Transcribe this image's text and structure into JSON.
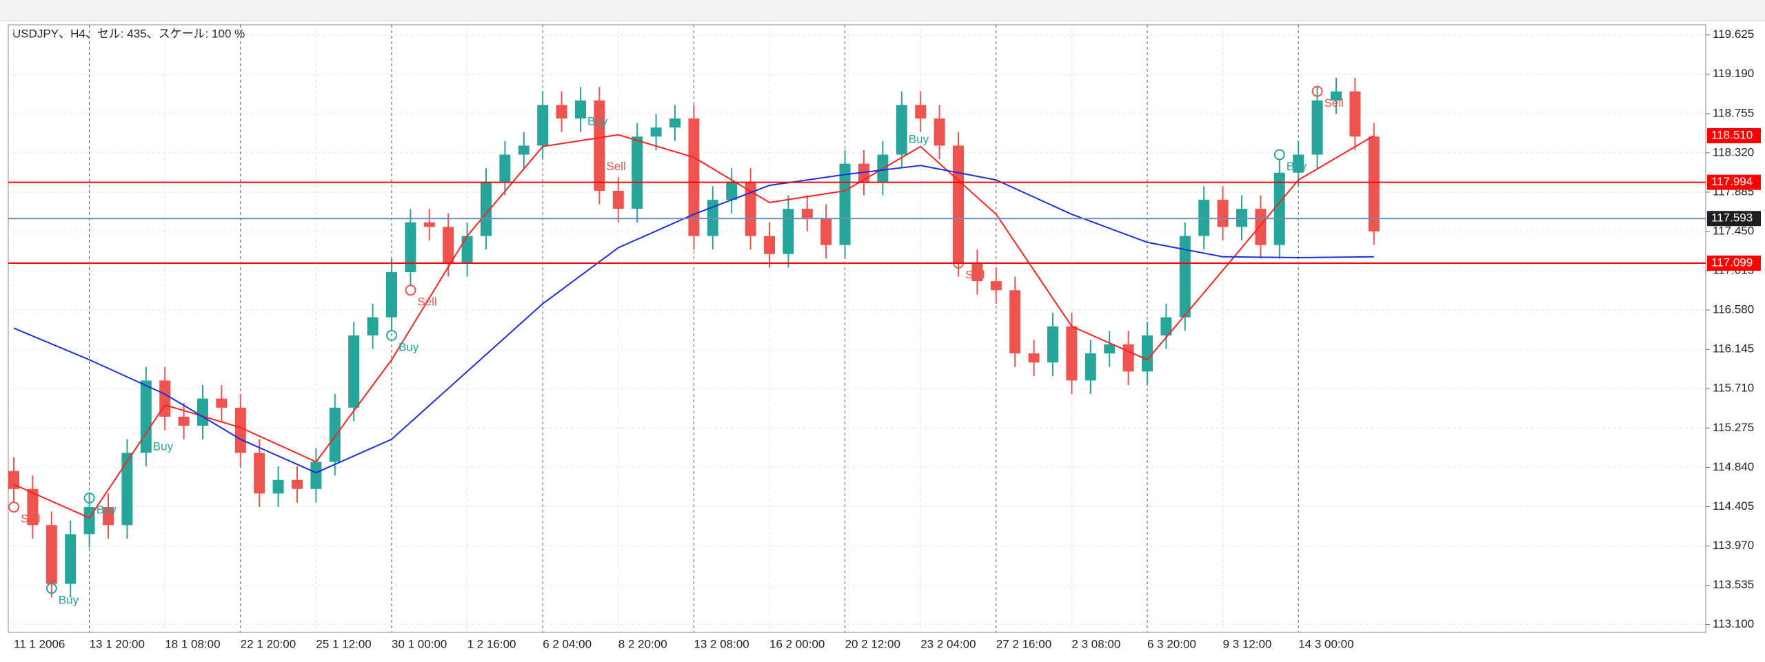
{
  "chart_data": {
    "type": "candlestick",
    "title": "USDJPY、H4、セル: 435、スケール: 100 %",
    "x_labels": [
      "11 1 2006",
      "13 1 20:00",
      "18 1 08:00",
      "22 1 20:00",
      "25 1 12:00",
      "30 1 00:00",
      "1 2 16:00",
      "6 2 04:00",
      "8 2 20:00",
      "13 2 08:00",
      "16 2 00:00",
      "20 2 12:00",
      "23 2 04:00",
      "27 2 16:00",
      "2 3 08:00",
      "6 3 20:00",
      "9 3 12:00",
      "14 3 00:00"
    ],
    "ylim": [
      113.013,
      119.737
    ],
    "yticks": [
      {
        "value": 113.1,
        "label": "113.100"
      },
      {
        "value": 113.535,
        "label": "113.535"
      },
      {
        "value": 113.97,
        "label": "113.970"
      },
      {
        "value": 114.405,
        "label": "114.405"
      },
      {
        "value": 114.84,
        "label": "114.840"
      },
      {
        "value": 115.275,
        "label": "115.275"
      },
      {
        "value": 115.71,
        "label": "115.710"
      },
      {
        "value": 116.145,
        "label": "116.145"
      },
      {
        "value": 116.58,
        "label": "116.580"
      },
      {
        "value": 117.015,
        "label": "117.015"
      },
      {
        "value": 117.45,
        "label": "117.450"
      },
      {
        "value": 117.885,
        "label": "117.885"
      },
      {
        "value": 118.32,
        "label": "118.320"
      },
      {
        "value": 118.755,
        "label": "118.755"
      },
      {
        "value": 119.19,
        "label": "119.190"
      },
      {
        "value": 119.625,
        "label": "119.625"
      }
    ],
    "grid": true,
    "up_color": "#26a69a",
    "down_color": "#ef5350",
    "open": [
      114.8,
      114.6,
      114.2,
      113.55,
      114.1,
      114.4,
      114.2,
      115.0,
      115.8,
      115.4,
      115.3,
      115.6,
      115.5,
      115.0,
      114.55,
      114.7,
      114.6,
      114.9,
      115.5,
      116.3,
      116.5,
      117.0,
      117.55,
      117.5,
      117.1,
      117.4,
      118.0,
      118.3,
      118.4,
      118.85,
      118.7,
      118.9,
      117.9,
      117.7,
      118.5,
      118.6,
      118.7,
      117.4,
      117.8,
      118.0,
      117.4,
      117.2,
      117.7,
      117.6,
      117.3,
      118.2,
      118.0,
      118.3,
      118.85,
      118.7,
      118.4,
      117.1,
      116.9,
      116.8,
      116.1,
      116.0,
      116.4,
      115.8,
      116.1,
      116.2,
      115.9,
      116.3,
      116.5,
      117.4,
      117.8,
      117.5,
      117.7,
      117.3,
      118.1,
      118.3,
      118.9,
      119.0,
      118.5
    ],
    "high": [
      114.95,
      114.75,
      114.35,
      114.25,
      114.55,
      114.55,
      115.15,
      115.95,
      115.95,
      115.55,
      115.75,
      115.75,
      115.65,
      115.15,
      114.85,
      114.85,
      115.05,
      115.65,
      116.45,
      116.65,
      117.15,
      117.7,
      117.7,
      117.65,
      117.55,
      118.15,
      118.45,
      118.55,
      119.0,
      119.0,
      119.05,
      119.05,
      118.05,
      118.65,
      118.75,
      118.85,
      118.85,
      117.95,
      118.15,
      118.15,
      117.55,
      117.85,
      117.85,
      117.75,
      118.35,
      118.35,
      118.45,
      119.0,
      119.0,
      118.85,
      118.55,
      117.25,
      117.05,
      116.95,
      116.25,
      116.55,
      116.55,
      116.25,
      116.35,
      116.35,
      116.45,
      116.65,
      117.55,
      117.95,
      117.95,
      117.85,
      117.85,
      118.25,
      118.45,
      119.05,
      119.15,
      119.15,
      118.65
    ],
    "low": [
      114.45,
      114.05,
      113.4,
      113.4,
      113.95,
      114.05,
      114.05,
      114.85,
      115.25,
      115.15,
      115.15,
      115.35,
      114.85,
      114.4,
      114.4,
      114.45,
      114.45,
      114.75,
      115.35,
      116.15,
      116.35,
      116.85,
      117.35,
      116.95,
      116.95,
      117.25,
      117.85,
      118.15,
      118.25,
      118.55,
      118.55,
      117.75,
      117.55,
      117.55,
      118.35,
      118.45,
      117.25,
      117.25,
      117.65,
      117.25,
      117.05,
      117.05,
      117.45,
      117.15,
      117.15,
      117.85,
      117.85,
      118.15,
      118.55,
      118.25,
      116.95,
      116.75,
      116.65,
      115.95,
      115.85,
      115.85,
      115.65,
      115.65,
      115.95,
      115.75,
      115.75,
      116.15,
      116.35,
      117.25,
      117.35,
      117.35,
      117.15,
      117.15,
      117.95,
      118.15,
      118.75,
      118.35,
      117.3
    ],
    "close": [
      114.6,
      114.2,
      113.55,
      114.1,
      114.4,
      114.2,
      115.0,
      115.8,
      115.4,
      115.3,
      115.6,
      115.5,
      115.0,
      114.55,
      114.7,
      114.6,
      114.9,
      115.5,
      116.3,
      116.5,
      117.0,
      117.55,
      117.5,
      117.1,
      117.4,
      118.0,
      118.3,
      118.4,
      118.85,
      118.7,
      118.9,
      117.9,
      117.7,
      118.5,
      118.6,
      118.7,
      117.4,
      117.8,
      118.0,
      117.4,
      117.2,
      117.7,
      117.6,
      117.3,
      118.2,
      118.0,
      118.3,
      118.85,
      118.7,
      118.4,
      117.1,
      116.9,
      116.8,
      116.1,
      116.0,
      116.4,
      115.8,
      116.1,
      116.2,
      115.9,
      116.3,
      116.5,
      117.4,
      117.8,
      117.5,
      117.7,
      117.3,
      118.1,
      118.3,
      118.9,
      119.0,
      118.5,
      117.45
    ],
    "series": [
      {
        "color": "#ff2020",
        "x": [
          0,
          4,
          8,
          12,
          16,
          20,
          24,
          28,
          32,
          36,
          40,
          44,
          48,
          52,
          56,
          60,
          64,
          68,
          72
        ],
        "values": [
          114.65,
          114.28,
          115.53,
          115.28,
          114.9,
          116.03,
          117.4,
          118.39,
          118.52,
          118.27,
          117.77,
          117.9,
          118.39,
          117.64,
          116.4,
          116.03,
          117.02,
          118.02,
          118.51
        ]
      },
      {
        "color": "#1a2fe0",
        "x": [
          0,
          4,
          8,
          12,
          16,
          20,
          24,
          28,
          32,
          36,
          40,
          44,
          48,
          52,
          56,
          60,
          64,
          68,
          72
        ],
        "values": [
          116.38,
          116.03,
          115.65,
          115.15,
          114.78,
          115.15,
          115.9,
          116.65,
          117.27,
          117.64,
          117.96,
          118.08,
          118.18,
          118.02,
          117.64,
          117.33,
          117.17,
          117.16,
          117.17
        ]
      }
    ],
    "signals": [
      {
        "x": 0,
        "price": 114.4,
        "label": "Sell",
        "color": "#ef5350"
      },
      {
        "x": 2,
        "price": 113.5,
        "label": "Buy",
        "color": "#26a69a"
      },
      {
        "x": 4,
        "price": 114.5,
        "label": "Buy",
        "color": "#26a69a"
      },
      {
        "x": 7,
        "price": 115.2,
        "label": "Buy",
        "color": "#26a69a"
      },
      {
        "x": 20,
        "price": 116.3,
        "label": "Buy",
        "color": "#26a69a"
      },
      {
        "x": 21,
        "price": 116.8,
        "label": "Sell",
        "color": "#ef5350"
      },
      {
        "x": 30,
        "price": 118.8,
        "label": "Buy",
        "color": "#26a69a"
      },
      {
        "x": 31,
        "price": 118.3,
        "label": "Sell",
        "color": "#ef5350"
      },
      {
        "x": 47,
        "price": 118.6,
        "label": "Buy",
        "color": "#26a69a"
      },
      {
        "x": 50,
        "price": 117.1,
        "label": "Sell",
        "color": "#ef5350"
      },
      {
        "x": 67,
        "price": 118.3,
        "label": "Buy",
        "color": "#26a69a"
      },
      {
        "x": 69,
        "price": 119.0,
        "label": "Sell",
        "color": "#ef5350"
      }
    ],
    "levels": [
      {
        "value": 118.51,
        "label": "118.510",
        "color": "#ff0000",
        "line": false
      },
      {
        "value": 117.994,
        "label": "117.994",
        "color": "#ff0000",
        "line": true
      },
      {
        "value": 117.593,
        "label": "117.593",
        "color": "#1e1e1e",
        "line": true
      },
      {
        "value": 117.099,
        "label": "117.099",
        "color": "#ff0000",
        "line": true
      }
    ]
  }
}
